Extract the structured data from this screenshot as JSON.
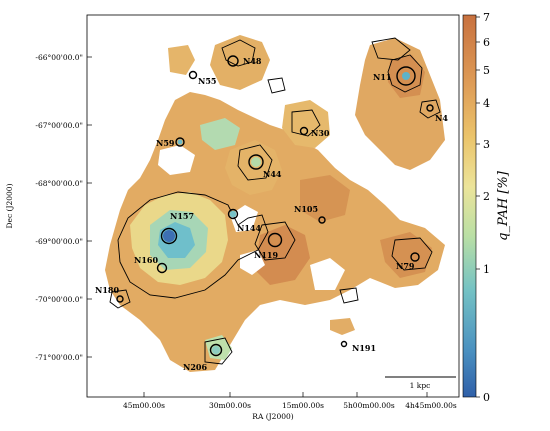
{
  "chart_data": {
    "type": "heatmap",
    "xlabel": "RA (J2000)",
    "ylabel": "Dec (J2000)",
    "x_ticks": [
      "45m00.00s",
      "30m00.00s",
      "15m00.00s",
      "5h00m00.00s",
      "4h45m00.00s"
    ],
    "y_ticks": [
      "-66°00'00.0\"",
      "-67°00'00.0\"",
      "-68°00'00.0\"",
      "-69°00'00.0\"",
      "-70°00'00.0\"",
      "-71°00'00.0\""
    ],
    "colorbar": {
      "label": "q_PAH [%]",
      "scale": "log-like",
      "range": [
        0,
        7
      ],
      "ticks": [
        "0",
        "1",
        "2",
        "3",
        "4",
        "5",
        "6",
        "7"
      ],
      "colormap": [
        "#3b6fb6",
        "#5bb8c9",
        "#a8d8b0",
        "#e9e49a",
        "#eac46a",
        "#dc9a52",
        "#c56b3c"
      ]
    },
    "scale_bar": "1 kpc",
    "regions": [
      "N11",
      "N48",
      "N55",
      "N4",
      "N30",
      "N59",
      "N44",
      "N157",
      "N105",
      "N144",
      "N119",
      "N79",
      "N160",
      "N180",
      "N191",
      "N206"
    ],
    "colors": {
      "high": "#d08a4e",
      "mid": "#e8c271",
      "low": "#5ab5c5",
      "contour": "#000000"
    }
  }
}
